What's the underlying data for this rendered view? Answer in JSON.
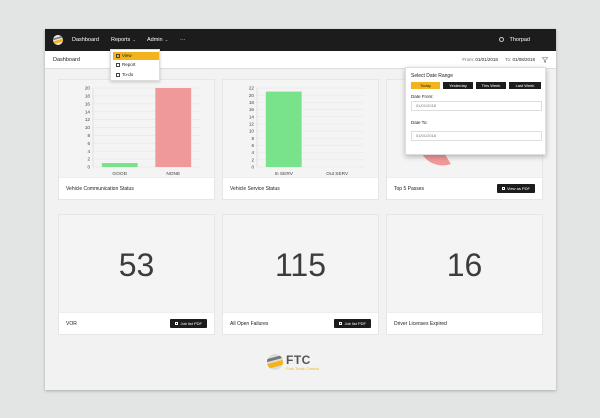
{
  "nav": {
    "items": [
      {
        "label": "Dashboard"
      },
      {
        "label": "Reports"
      },
      {
        "label": "Admin"
      },
      {
        "label": "···"
      }
    ],
    "user": "Thorpad"
  },
  "reports_menu": {
    "items": [
      {
        "label": "View",
        "icon": "eye-icon",
        "active": true
      },
      {
        "label": "Report",
        "icon": "report-icon",
        "active": false
      },
      {
        "label": "To-do",
        "icon": "todo-icon",
        "active": false
      }
    ]
  },
  "subbar": {
    "title": "Dashboard",
    "from_label": "From:",
    "from_value": "01/01/2018",
    "to_label": "To:",
    "to_value": "01/08/2018"
  },
  "date_panel": {
    "title": "Select Date Range",
    "ranges": [
      {
        "label": "Today",
        "active": true
      },
      {
        "label": "Yesterday",
        "active": false
      },
      {
        "label": "This Week",
        "active": false
      },
      {
        "label": "Last Week",
        "active": false
      }
    ],
    "date_from_label": "Date From:",
    "date_from_value": "01/01/2018",
    "date_to_label": "Date To:",
    "date_to_value": "01/01/2018"
  },
  "cards": {
    "vehicle_comm": {
      "label": "Vehicle Communication Status"
    },
    "vehicle_service": {
      "label": "Vehicle Service Status"
    },
    "top5": {
      "label": "Top 5 Passes",
      "button": "View as PDF"
    },
    "vor": {
      "label": "VOR",
      "value": "53",
      "button": "Job list PDF"
    },
    "open_failures": {
      "label": "All Open Failures",
      "value": "115",
      "button": "Job list PDF"
    },
    "licenses": {
      "label": "Driver Licenses Expired",
      "value": "16"
    }
  },
  "chart_data": [
    {
      "type": "bar",
      "categories": [
        "GOOD",
        "NONE"
      ],
      "values": [
        1,
        20
      ],
      "ylim": [
        0,
        20
      ],
      "yticks": [
        0,
        2,
        4,
        6,
        8,
        10,
        12,
        14,
        16,
        18,
        20
      ],
      "colors": [
        "#78e38a",
        "#f0999b"
      ]
    },
    {
      "type": "bar",
      "categories": [
        "In SERV",
        "Out SERV"
      ],
      "values": [
        21,
        0
      ],
      "ylim": [
        0,
        22
      ],
      "yticks": [
        0,
        2,
        4,
        6,
        8,
        10,
        12,
        14,
        16,
        18,
        20,
        22
      ],
      "colors": [
        "#78e38a",
        "#f0999b"
      ]
    },
    {
      "type": "pie",
      "categories": [],
      "values": [],
      "colors": [
        "#78e38a",
        "#f0999b"
      ]
    }
  ],
  "brand": {
    "name": "FTC",
    "tagline": "Fork Truck Control"
  },
  "colors": {
    "accent": "#f2b31c",
    "nav_bg": "#1c1c1c",
    "good": "#78e38a",
    "bad": "#f0999b"
  }
}
